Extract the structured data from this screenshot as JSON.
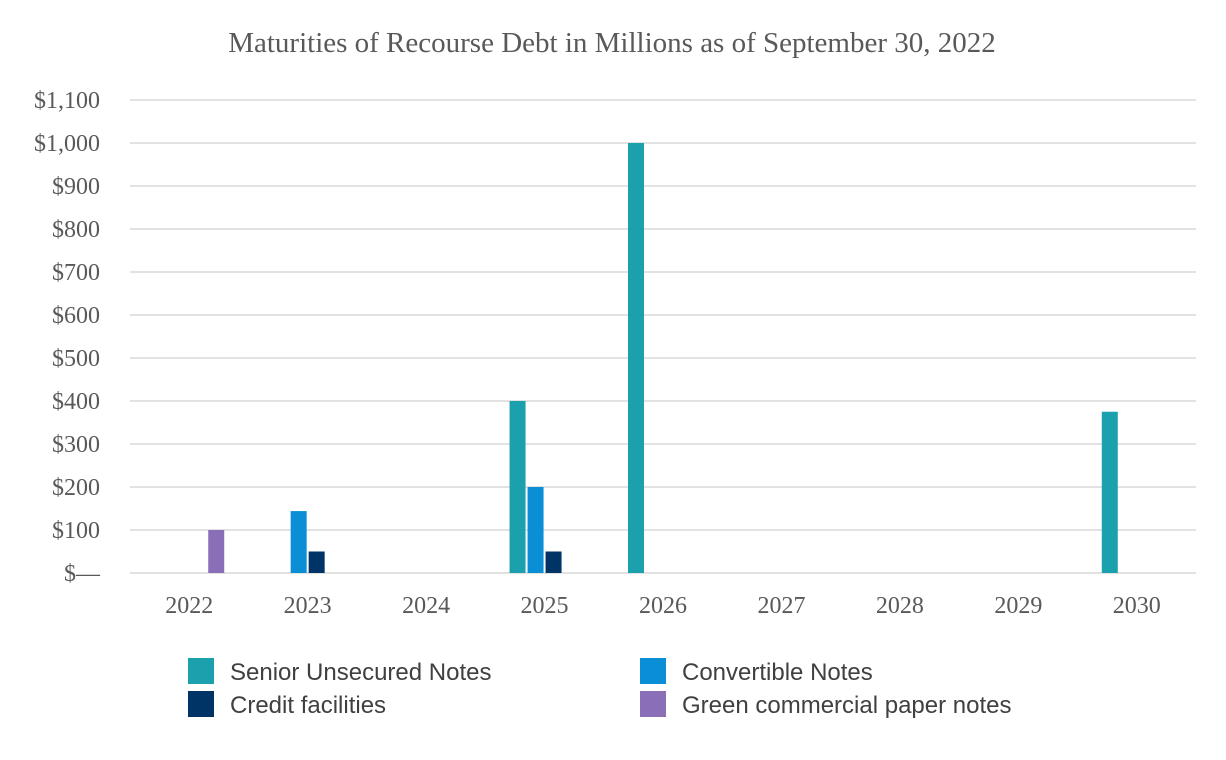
{
  "chart_data": {
    "type": "bar",
    "title": "Maturities of Recourse Debt in Millions as of September 30, 2022",
    "xlabel": "",
    "ylabel": "",
    "categories": [
      "2022",
      "2023",
      "2024",
      "2025",
      "2026",
      "2027",
      "2028",
      "2029",
      "2030"
    ],
    "ylim": [
      0,
      1100
    ],
    "y_ticks": [
      0,
      100,
      200,
      300,
      400,
      500,
      600,
      700,
      800,
      900,
      1000,
      1100
    ],
    "y_tick_labels": [
      "$—",
      "$100",
      "$200",
      "$300",
      "$400",
      "$500",
      "$600",
      "$700",
      "$800",
      "$900",
      "$1,000",
      "$1,100"
    ],
    "grid": true,
    "legend_position": "bottom",
    "series": [
      {
        "name": "Senior Unsecured Notes",
        "color": "#1ba0ad",
        "values": [
          0,
          0,
          0,
          400,
          1000,
          0,
          0,
          0,
          375
        ]
      },
      {
        "name": "Convertible Notes",
        "color": "#0a8fd6",
        "values": [
          0,
          144,
          0,
          200,
          0,
          0,
          0,
          0,
          0
        ]
      },
      {
        "name": "Credit facilities",
        "color": "#003366",
        "values": [
          0,
          50,
          0,
          50,
          0,
          0,
          0,
          0,
          0
        ]
      },
      {
        "name": "Green commercial paper notes",
        "color": "#8a6fb8",
        "values": [
          100,
          0,
          0,
          0,
          0,
          0,
          0,
          0,
          0
        ]
      }
    ],
    "legend_order": [
      0,
      1,
      2,
      3
    ]
  }
}
